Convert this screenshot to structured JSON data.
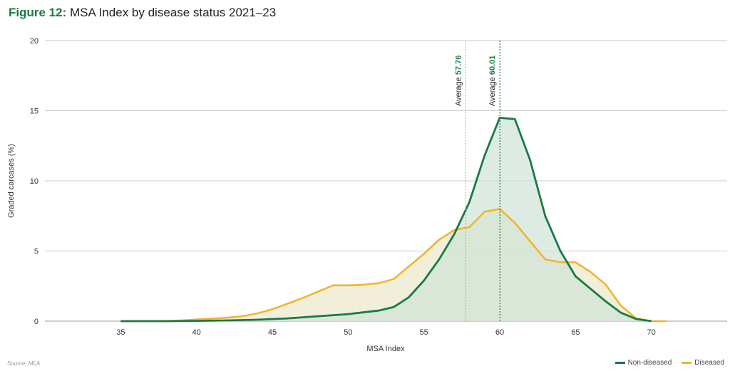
{
  "title": {
    "prefix": "Figure 12:",
    "text": "MSA Index by disease status 2021–23"
  },
  "source": "Source: MLA",
  "colors": {
    "non_diseased": "#1a7a45",
    "diseased": "#f0b429",
    "non_diseased_fill": "#cfe3d7",
    "diseased_fill": "#efedd6"
  },
  "chart_data": {
    "type": "area",
    "xlabel": "MSA Index",
    "ylabel": "Graded carcases (%)",
    "xlim": [
      30,
      75
    ],
    "ylim": [
      0,
      20
    ],
    "xticks": [
      35,
      40,
      45,
      50,
      55,
      60,
      65,
      70
    ],
    "yticks": [
      0,
      5,
      10,
      15,
      20
    ],
    "grid": "horizontal",
    "legend_position": "bottom-right",
    "series": [
      {
        "name": "Non-diseased",
        "x": [
          35,
          38,
          40,
          42,
          44,
          46,
          48,
          50,
          52,
          53,
          54,
          55,
          56,
          57,
          58,
          59,
          60,
          61,
          62,
          63,
          64,
          65,
          66,
          67,
          68,
          69,
          70
        ],
        "values": [
          0,
          0,
          0.02,
          0.05,
          0.1,
          0.2,
          0.35,
          0.5,
          0.75,
          1.0,
          1.7,
          2.9,
          4.4,
          6.2,
          8.5,
          11.8,
          14.5,
          14.4,
          11.5,
          7.5,
          5.0,
          3.2,
          2.3,
          1.4,
          0.6,
          0.15,
          0.0
        ]
      },
      {
        "name": "Diseased",
        "x": [
          35,
          38,
          39,
          40,
          41,
          42,
          43,
          44,
          45,
          46,
          47,
          48,
          49,
          50,
          51,
          52,
          53,
          54,
          55,
          56,
          57,
          58,
          59,
          60,
          61,
          62,
          63,
          64,
          65,
          66,
          67,
          68,
          69,
          70,
          71
        ],
        "values": [
          0,
          0.02,
          0.05,
          0.12,
          0.18,
          0.25,
          0.35,
          0.55,
          0.85,
          1.25,
          1.65,
          2.1,
          2.55,
          2.55,
          2.6,
          2.7,
          3.0,
          3.9,
          4.8,
          5.8,
          6.5,
          6.7,
          7.8,
          8.0,
          7.0,
          5.7,
          4.4,
          4.2,
          4.2,
          3.5,
          2.6,
          1.1,
          0.2,
          0.0,
          0.0
        ]
      }
    ],
    "annotations": [
      {
        "label": "Average",
        "value_label": "57.76",
        "x": 57.76,
        "series": "Diseased"
      },
      {
        "label": "Average",
        "value_label": "60.01",
        "x": 60.01,
        "series": "Non-diseased"
      }
    ]
  }
}
